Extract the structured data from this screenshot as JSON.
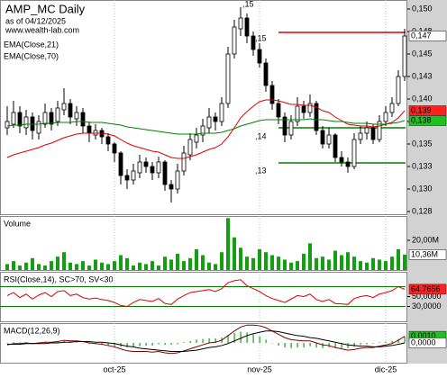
{
  "chart_data": [
    {
      "type": "candlestick",
      "title": "AMP_MC Daily",
      "subtitle": "as of 04/12/2025",
      "source": "www.wealth-lab.com",
      "categories": [
        null,
        null,
        null,
        null,
        null,
        null,
        null,
        null,
        null,
        null,
        null,
        null,
        null,
        null,
        null,
        null,
        null,
        "oct-25",
        null,
        null,
        null,
        null,
        null,
        null,
        null,
        null,
        null,
        null,
        null,
        null,
        null,
        null,
        null,
        null,
        null,
        null,
        null,
        null,
        null,
        null,
        "nov-25",
        null,
        null,
        null,
        null,
        null,
        null,
        null,
        null,
        null,
        null,
        null,
        null,
        null,
        null,
        null,
        null,
        null,
        null,
        null,
        "dic-25",
        null,
        null,
        null
      ],
      "ohlc": [
        [
          0.1368,
          0.1392,
          0.136,
          0.1375
        ],
        [
          0.1372,
          0.1398,
          0.1368,
          0.1385
        ],
        [
          0.1385,
          0.1392,
          0.1362,
          0.137
        ],
        [
          0.1368,
          0.1388,
          0.136,
          0.138
        ],
        [
          0.138,
          0.1385,
          0.1355,
          0.1365
        ],
        [
          0.1362,
          0.1382,
          0.1355,
          0.1375
        ],
        [
          0.1372,
          0.1395,
          0.1368,
          0.1385
        ],
        [
          0.1385,
          0.139,
          0.1365,
          0.1372
        ],
        [
          0.1375,
          0.1398,
          0.137,
          0.139
        ],
        [
          0.1388,
          0.1412,
          0.1382,
          0.1395
        ],
        [
          0.1395,
          0.14,
          0.1372,
          0.138
        ],
        [
          0.1378,
          0.1392,
          0.137,
          0.1385
        ],
        [
          0.1385,
          0.139,
          0.1362,
          0.137
        ],
        [
          0.137,
          0.1375,
          0.1352,
          0.1362
        ],
        [
          0.136,
          0.1372,
          0.1355,
          0.1365
        ],
        [
          0.1365,
          0.1368,
          0.135,
          0.1358
        ],
        [
          0.1358,
          0.1362,
          0.1342,
          0.135
        ],
        [
          0.135,
          0.1352,
          0.133,
          0.134
        ],
        [
          0.134,
          0.1342,
          0.1305,
          0.1315
        ],
        [
          0.1315,
          0.1322,
          0.13,
          0.131
        ],
        [
          0.131,
          0.1328,
          0.1305,
          0.132
        ],
        [
          0.1318,
          0.1338,
          0.1312,
          0.133
        ],
        [
          0.133,
          0.1335,
          0.1318,
          0.1325
        ],
        [
          0.1325,
          0.133,
          0.131,
          0.1318
        ],
        [
          0.1318,
          0.1336,
          0.1312,
          0.133
        ],
        [
          0.133,
          0.1332,
          0.1298,
          0.1305
        ],
        [
          0.1305,
          0.131,
          0.1285,
          0.13
        ],
        [
          0.13,
          0.1328,
          0.1295,
          0.132
        ],
        [
          0.132,
          0.1348,
          0.1315,
          0.134
        ],
        [
          0.1338,
          0.1362,
          0.1332,
          0.1355
        ],
        [
          0.1352,
          0.1368,
          0.1345,
          0.136
        ],
        [
          0.136,
          0.1378,
          0.1352,
          0.137
        ],
        [
          0.1368,
          0.139,
          0.1362,
          0.138
        ],
        [
          0.138,
          0.1385,
          0.1365,
          0.1375
        ],
        [
          0.1375,
          0.1402,
          0.137,
          0.1395
        ],
        [
          0.1395,
          0.1458,
          0.139,
          0.145
        ],
        [
          0.145,
          0.1488,
          0.1445,
          0.148
        ],
        [
          0.1478,
          0.1502,
          0.147,
          0.149
        ],
        [
          0.149,
          0.1495,
          0.1462,
          0.147
        ],
        [
          0.147,
          0.1475,
          0.1448,
          0.1455
        ],
        [
          0.1455,
          0.1462,
          0.1435,
          0.144
        ],
        [
          0.144,
          0.1445,
          0.1408,
          0.1415
        ],
        [
          0.1415,
          0.142,
          0.1388,
          0.1395
        ],
        [
          0.1395,
          0.14,
          0.1372,
          0.138
        ],
        [
          0.138,
          0.1385,
          0.1352,
          0.136
        ],
        [
          0.136,
          0.1382,
          0.1355,
          0.1375
        ],
        [
          0.1375,
          0.1402,
          0.137,
          0.1392
        ],
        [
          0.1392,
          0.1398,
          0.1378,
          0.1385
        ],
        [
          0.1385,
          0.1405,
          0.138,
          0.1395
        ],
        [
          0.1395,
          0.1398,
          0.136,
          0.1365
        ],
        [
          0.1365,
          0.137,
          0.1345,
          0.135
        ],
        [
          0.135,
          0.1368,
          0.1345,
          0.136
        ],
        [
          0.136,
          0.1362,
          0.133,
          0.1335
        ],
        [
          0.1335,
          0.1342,
          0.1325,
          0.133
        ],
        [
          0.133,
          0.1335,
          0.1318,
          0.1325
        ],
        [
          0.1325,
          0.1362,
          0.1322,
          0.1355
        ],
        [
          0.1355,
          0.137,
          0.135,
          0.1362
        ],
        [
          0.1362,
          0.1375,
          0.1355,
          0.1368
        ],
        [
          0.1368,
          0.1372,
          0.135,
          0.1355
        ],
        [
          0.1355,
          0.1382,
          0.1352,
          0.1375
        ],
        [
          0.1375,
          0.1392,
          0.137,
          0.1385
        ],
        [
          0.1385,
          0.1402,
          0.138,
          0.1395
        ],
        [
          0.1395,
          0.1432,
          0.1392,
          0.1425
        ],
        [
          0.1425,
          0.1478,
          0.142,
          0.147
        ]
      ],
      "up_color": "#ffffff",
      "down_color": "#000000",
      "series": [
        {
          "name": "EMA(Close,21)",
          "color": "#e00000",
          "values": [
            0.1335,
            0.1338,
            0.134,
            0.1342,
            0.1344,
            0.1346,
            0.1349,
            0.1351,
            0.1354,
            0.1357,
            0.1359,
            0.1361,
            0.1362,
            0.1362,
            0.1362,
            0.1362,
            0.1361,
            0.1359,
            0.1355,
            0.1351,
            0.1348,
            0.1346,
            0.1344,
            0.1342,
            0.1341,
            0.1338,
            0.1335,
            0.1334,
            0.1334,
            0.1336,
            0.1338,
            0.1341,
            0.1344,
            0.1346,
            0.135,
            0.1358,
            0.1368,
            0.1379,
            0.1386,
            0.1392,
            0.1397,
            0.1399,
            0.1399,
            0.1398,
            0.1396,
            0.1394,
            0.1394,
            0.1393,
            0.1393,
            0.1391,
            0.1387,
            0.1385,
            0.138,
            0.1376,
            0.1372,
            0.1371,
            0.137,
            0.137,
            0.1369,
            0.137,
            0.1372,
            0.1374,
            0.1379,
            0.1387
          ]
        },
        {
          "name": "EMA(Close,70)",
          "color": "#008000",
          "values": [
            0.137,
            0.1371,
            0.1371,
            0.1372,
            0.1372,
            0.1372,
            0.1373,
            0.1373,
            0.1374,
            0.1374,
            0.1374,
            0.1375,
            0.1375,
            0.1374,
            0.1374,
            0.1374,
            0.1373,
            0.1372,
            0.1371,
            0.1369,
            0.1368,
            0.1367,
            0.1366,
            0.1365,
            0.1364,
            0.1363,
            0.1362,
            0.1361,
            0.1361,
            0.1361,
            0.1361,
            0.1362,
            0.1362,
            0.1362,
            0.1363,
            0.1365,
            0.1367,
            0.137,
            0.1372,
            0.1374,
            0.1376,
            0.1377,
            0.1377,
            0.1377,
            0.1377,
            0.1377,
            0.1377,
            0.1377,
            0.1378,
            0.1377,
            0.1377,
            0.1376,
            0.1375,
            0.1375,
            0.1374,
            0.1373,
            0.1373,
            0.1373,
            0.1372,
            0.1372,
            0.1372,
            0.1373,
            0.1374,
            0.1376
          ]
        }
      ],
      "levels": [
        {
          "value": 0.1474,
          "color": "#e00000",
          "start": 43
        },
        {
          "value": 0.1368,
          "color": "#008000",
          "start": 43
        },
        {
          "value": 0.1329,
          "color": "#008000",
          "start": 43
        }
      ],
      "annotations": [
        {
          "text": ",15",
          "index": 37,
          "value": 0.1505
        },
        {
          "text": ",15",
          "index": 39,
          "value": 0.1467
        },
        {
          "text": ",14",
          "index": 39,
          "value": 0.1358
        },
        {
          "text": ",13",
          "index": 39,
          "value": 0.132
        }
      ],
      "badges": [
        {
          "value": 0.147,
          "label": "0,147",
          "color": "#ffffff"
        },
        {
          "value": 0.1387,
          "label": "0,139",
          "color": "#ff2020"
        },
        {
          "value": 0.1376,
          "label": "0,138",
          "color": "#20c020"
        }
      ],
      "ylim": [
        0.1272,
        0.151
      ],
      "yticks": [
        {
          "value": 0.15,
          "label": "0,150"
        },
        {
          "value": 0.1475,
          "label": "0,148"
        },
        {
          "value": 0.145,
          "label": "0,145"
        },
        {
          "value": 0.1425,
          "label": "0,143"
        },
        {
          "value": 0.14,
          "label": "0,140"
        },
        {
          "value": 0.1375,
          "label": "0,138"
        },
        {
          "value": 0.135,
          "label": "0,135"
        },
        {
          "value": 0.1325,
          "label": "0,133"
        },
        {
          "value": 0.13,
          "label": "0,130"
        },
        {
          "value": 0.1275,
          "label": "0,128"
        }
      ]
    },
    {
      "type": "bar",
      "title": "Volume",
      "color": "#10a010",
      "values": [
        4,
        6,
        3,
        5,
        8,
        4,
        3,
        6,
        9,
        12,
        5,
        4,
        6,
        3,
        7,
        5,
        4,
        6,
        10,
        8,
        3,
        5,
        4,
        6,
        3,
        9,
        7,
        11,
        6,
        8,
        14,
        10,
        5,
        4,
        12,
        35,
        22,
        15,
        9,
        8,
        14,
        12,
        10,
        9,
        7,
        5,
        6,
        11,
        18,
        8,
        9,
        7,
        13,
        10,
        12,
        9,
        6,
        5,
        8,
        7,
        6,
        9,
        14,
        10.36
      ],
      "ylim": [
        0,
        36.4
      ],
      "yticks": [
        {
          "value": 20,
          "label": "20,00M"
        }
      ],
      "badges": [
        {
          "value": 10.36,
          "label": "10,36M",
          "color": "#ffffff"
        }
      ]
    },
    {
      "type": "line",
      "title": "RSI(Close,14), SC>70, SV<30",
      "series": [
        {
          "color": "#e00000",
          "values": [
            52,
            58,
            48,
            55,
            45,
            53,
            58,
            50,
            60,
            62,
            52,
            55,
            48,
            45,
            47,
            44,
            42,
            38,
            32,
            30,
            38,
            44,
            42,
            40,
            46,
            36,
            34,
            45,
            52,
            58,
            60,
            62,
            64,
            60,
            66,
            78,
            82,
            84,
            72,
            66,
            60,
            52,
            46,
            42,
            38,
            45,
            52,
            50,
            55,
            44,
            40,
            44,
            36,
            35,
            34,
            46,
            50,
            52,
            48,
            55,
            58,
            62,
            70,
            64.7656
          ]
        }
      ],
      "levels": [
        {
          "value": 70,
          "color": "#008000"
        },
        {
          "value": 30,
          "color": "#008000"
        }
      ],
      "ylim": [
        0,
        100
      ],
      "yticks": [
        {
          "value": 50,
          "label": "50,0000"
        },
        {
          "value": 30,
          "label": "30,0000"
        }
      ],
      "badges": [
        {
          "value": 64.7656,
          "label": "64,7656",
          "color": "#ff2020"
        }
      ]
    },
    {
      "type": "line",
      "title": "MACD(12,26,9)",
      "histogram": {
        "color": "#10a010",
        "values": [
          -0.0001,
          0.0001,
          0.0001,
          0.0001,
          0.0,
          0.0001,
          0.0002,
          0.0001,
          0.0002,
          0.0003,
          0.0002,
          0.0001,
          0.0,
          -0.0002,
          -0.0002,
          -0.0003,
          -0.0004,
          -0.0005,
          -0.0006,
          -0.0007,
          -0.0007,
          -0.0005,
          -0.0004,
          -0.0004,
          -0.0002,
          -0.0003,
          -0.0003,
          -0.0002,
          0.0001,
          0.0003,
          0.0005,
          0.0006,
          0.0007,
          0.0007,
          0.0008,
          0.0012,
          0.0015,
          0.0017,
          0.0016,
          0.0013,
          0.001,
          0.0005,
          0.0,
          -0.0004,
          -0.0007,
          -0.0008,
          -0.0007,
          -0.0007,
          -0.0005,
          -0.0007,
          -0.0008,
          -0.0007,
          -0.0008,
          -0.0008,
          -0.0008,
          -0.0006,
          -0.0003,
          -0.0002,
          -0.0001,
          0.0001,
          0.0002,
          0.0003,
          0.0006,
          0.001
        ]
      },
      "series": [
        {
          "color": "#800000",
          "values": [
            -0.0003,
            -0.0001,
            -0.0001,
            0.0,
            -0.0001,
            0.0,
            0.0001,
            0.0001,
            0.0002,
            0.0004,
            0.0003,
            0.0003,
            0.0002,
            0.0,
            -0.0001,
            -0.0002,
            -0.0004,
            -0.0006,
            -0.0009,
            -0.0012,
            -0.0013,
            -0.0013,
            -0.0013,
            -0.0014,
            -0.0013,
            -0.0015,
            -0.0016,
            -0.0015,
            -0.0012,
            -0.0009,
            -0.0006,
            -0.0003,
            0.0,
            0.0001,
            0.0004,
            0.0011,
            0.0018,
            0.0024,
            0.0027,
            0.0027,
            0.0026,
            0.0023,
            0.0018,
            0.0013,
            0.0008,
            0.0005,
            0.0004,
            0.0003,
            0.0003,
            0.0,
            -0.0003,
            -0.0004,
            -0.0007,
            -0.0009,
            -0.0011,
            -0.001,
            -0.0008,
            -0.0007,
            -0.0007,
            -0.0005,
            -0.0003,
            -0.0001,
            0.0004,
            0.001
          ]
        },
        {
          "color": "#000000",
          "values": [
            -0.0002,
            -0.0002,
            -0.0002,
            -0.0001,
            -0.0001,
            -0.0001,
            -0.0001,
            0.0,
            0.0,
            0.0001,
            0.0001,
            0.0002,
            0.0002,
            0.0002,
            0.0001,
            0.0001,
            0.0,
            -0.0001,
            -0.0003,
            -0.0005,
            -0.0006,
            -0.0008,
            -0.0009,
            -0.001,
            -0.0011,
            -0.0012,
            -0.0013,
            -0.0013,
            -0.0013,
            -0.0012,
            -0.0011,
            -0.0009,
            -0.0007,
            -0.0006,
            -0.0004,
            -0.0001,
            0.0003,
            0.0007,
            0.0011,
            0.0014,
            0.0016,
            0.0018,
            0.0018,
            0.0017,
            0.0015,
            0.0013,
            0.0011,
            0.001,
            0.0008,
            0.0007,
            0.0005,
            0.0003,
            0.0001,
            -0.0001,
            -0.0003,
            -0.0004,
            -0.0005,
            -0.0005,
            -0.0006,
            -0.0006,
            -0.0005,
            -0.0004,
            -0.0002,
            0.0
          ]
        }
      ],
      "ylim": [
        -0.003,
        0.003
      ],
      "badges": [
        {
          "value": 0.001,
          "label": "0,0010",
          "color": "#20c020"
        },
        {
          "value": 0.0,
          "label": "0,0000",
          "color": "#ffffff"
        }
      ]
    }
  ]
}
